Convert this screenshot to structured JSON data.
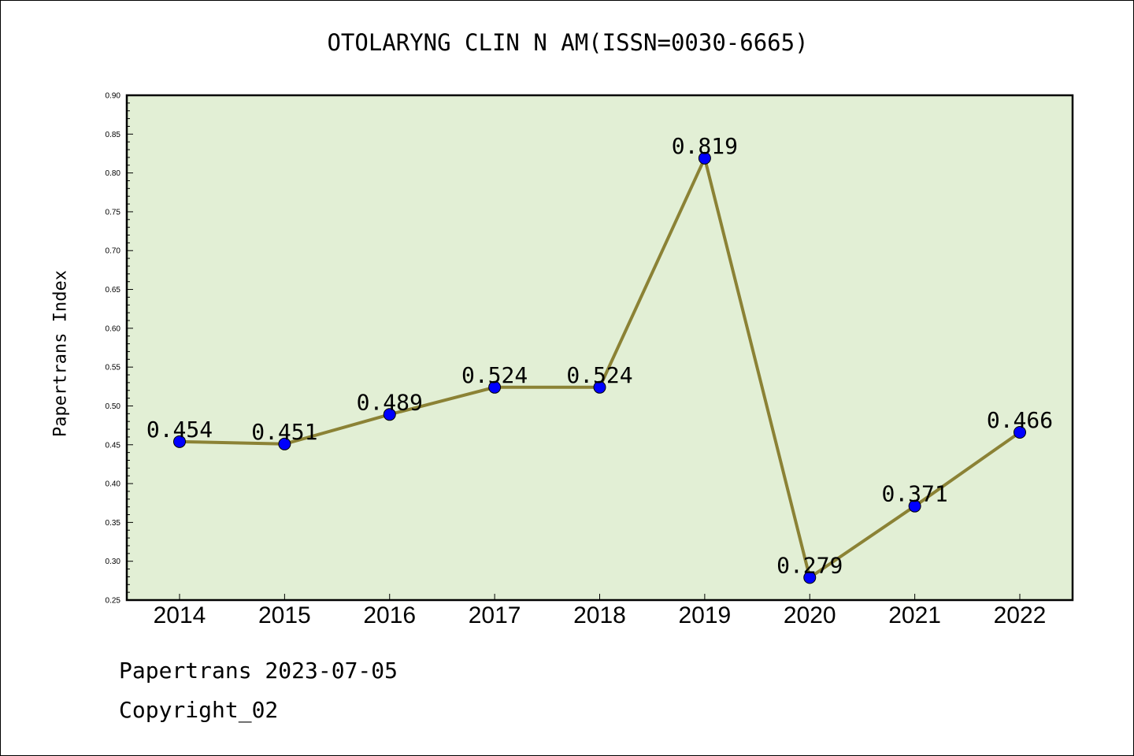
{
  "chart_data": {
    "type": "line",
    "title": "OTOLARYNG CLIN N AM(ISSN=0030-6665)",
    "ylabel": "Papertrans Index",
    "xlabel": "",
    "categories": [
      "2014",
      "2015",
      "2016",
      "2017",
      "2018",
      "2019",
      "2020",
      "2021",
      "2022"
    ],
    "series": [
      {
        "values": [
          0.454,
          0.451,
          0.489,
          0.524,
          0.524,
          0.819,
          0.279,
          0.371,
          0.466
        ]
      }
    ],
    "data_labels": [
      "0.454",
      "0.451",
      "0.489",
      "0.524",
      "0.524",
      "0.819",
      "0.279",
      "0.371",
      "0.466"
    ],
    "ylim": [
      0.25,
      0.9
    ],
    "yticks": [
      "0.25",
      "0.30",
      "0.35",
      "0.40",
      "0.45",
      "0.50",
      "0.55",
      "0.60",
      "0.65",
      "0.70",
      "0.75",
      "0.80",
      "0.85",
      "0.90"
    ],
    "grid": false,
    "colors": {
      "plot_background": "#e2efd5",
      "line": "#8b8235",
      "marker": "#0000ff"
    }
  },
  "footer": {
    "line1": "Papertrans 2023-07-05",
    "line2": "Copyright_02"
  }
}
